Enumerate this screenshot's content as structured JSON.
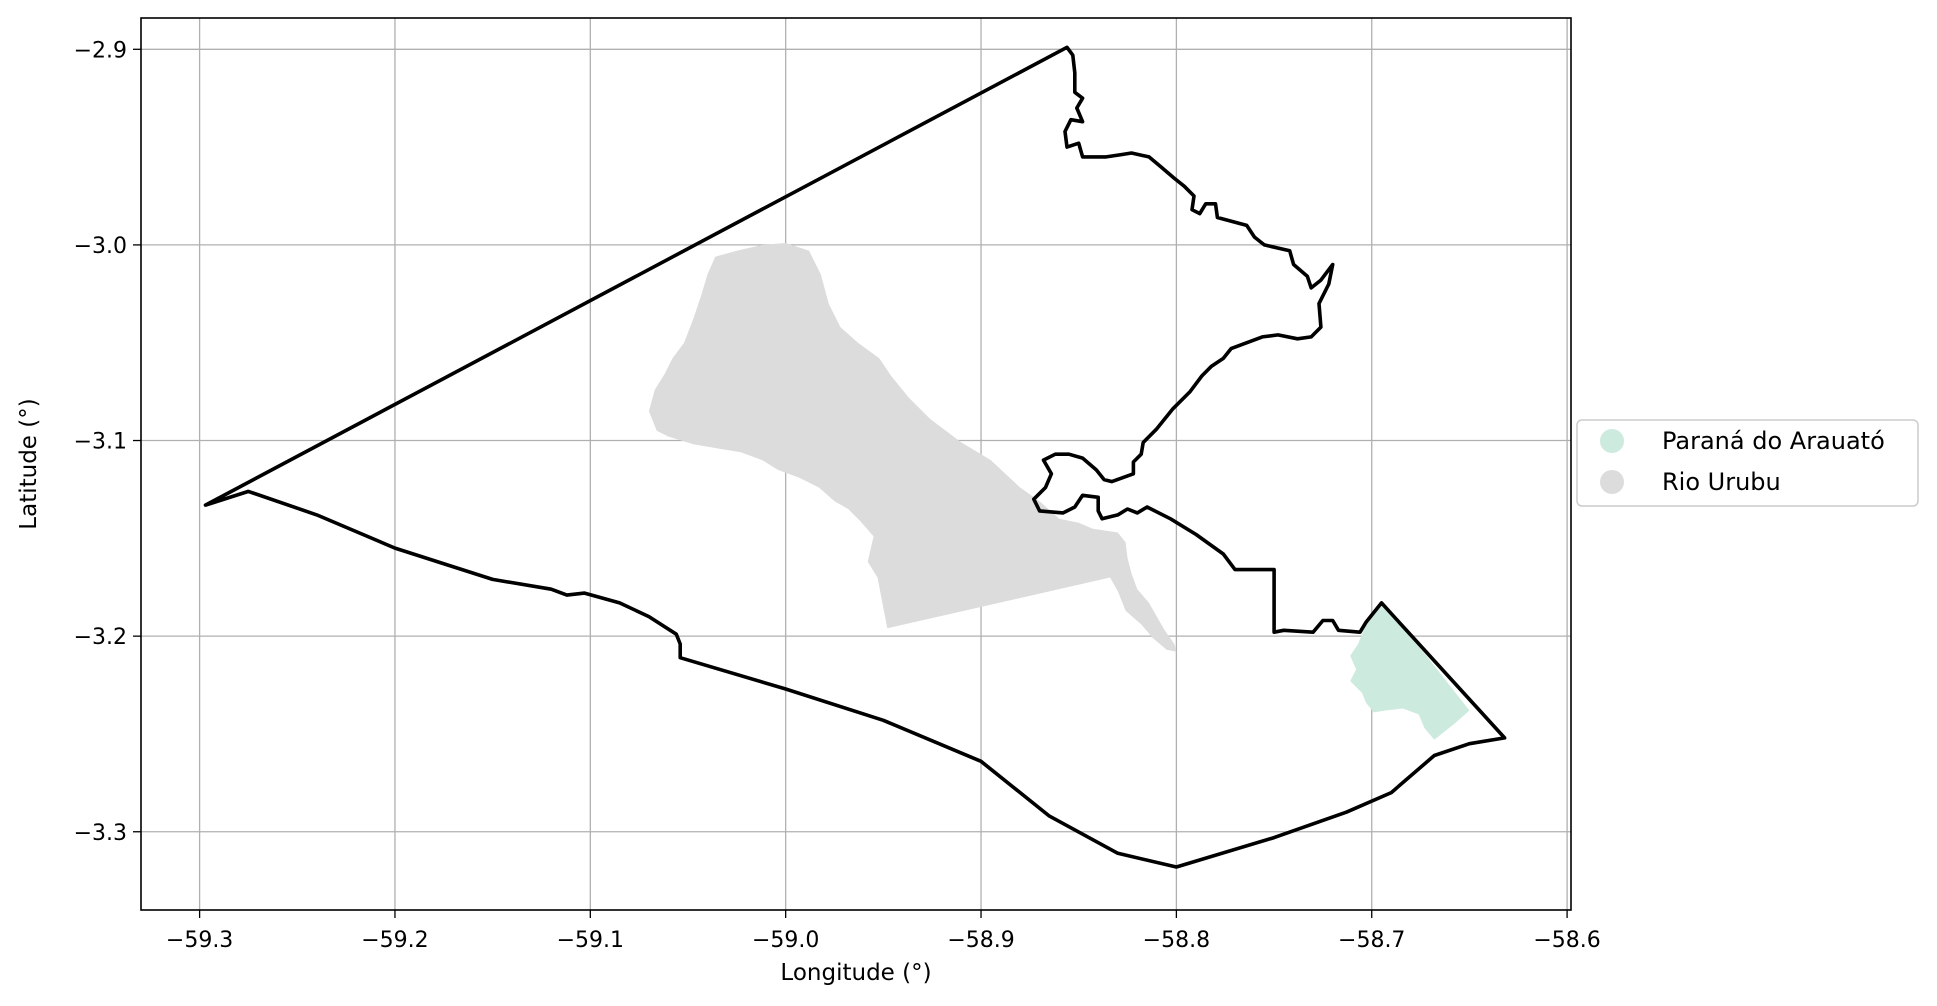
{
  "chart_data": {
    "type": "map",
    "xlabel": "Longitude (°)",
    "ylabel": "Latitude (°)",
    "xlim": [
      -59.33,
      -58.598
    ],
    "ylim": [
      -3.34,
      -2.884
    ],
    "grid": true,
    "legend_position": "right",
    "x_ticks": [
      {
        "value": -59.3,
        "label": "−59.3"
      },
      {
        "value": -59.2,
        "label": "−59.2"
      },
      {
        "value": -59.1,
        "label": "−59.1"
      },
      {
        "value": -59.0,
        "label": "−59.0"
      },
      {
        "value": -58.9,
        "label": "−58.9"
      },
      {
        "value": -58.8,
        "label": "−58.8"
      },
      {
        "value": -58.7,
        "label": "−58.7"
      },
      {
        "value": -58.6,
        "label": "−58.6"
      }
    ],
    "y_ticks": [
      {
        "value": -2.9,
        "label": "−2.9"
      },
      {
        "value": -3.0,
        "label": "−3.0"
      },
      {
        "value": -3.1,
        "label": "−3.1"
      },
      {
        "value": -3.2,
        "label": "−3.2"
      },
      {
        "value": -3.3,
        "label": "−3.3"
      }
    ],
    "boundary": {
      "color": "#000000",
      "points": [
        [
          -59.297,
          -3.133
        ],
        [
          -59.275,
          -3.126
        ],
        [
          -59.24,
          -3.138
        ],
        [
          -59.2,
          -3.155
        ],
        [
          -59.15,
          -3.171
        ],
        [
          -59.12,
          -3.176
        ],
        [
          -59.112,
          -3.179
        ],
        [
          -59.103,
          -3.178
        ],
        [
          -59.085,
          -3.183
        ],
        [
          -59.07,
          -3.19
        ],
        [
          -59.056,
          -3.199
        ],
        [
          -59.054,
          -3.204
        ],
        [
          -59.054,
          -3.211
        ],
        [
          -59.0,
          -3.227
        ],
        [
          -58.95,
          -3.243
        ],
        [
          -58.9,
          -3.264
        ],
        [
          -58.865,
          -3.292
        ],
        [
          -58.83,
          -3.311
        ],
        [
          -58.8,
          -3.318
        ],
        [
          -58.75,
          -3.303
        ],
        [
          -58.713,
          -3.29
        ],
        [
          -58.69,
          -3.28
        ],
        [
          -58.668,
          -3.261
        ],
        [
          -58.65,
          -3.255
        ],
        [
          -58.632,
          -3.252
        ],
        [
          -58.695,
          -3.183
        ],
        [
          -58.703,
          -3.193
        ],
        [
          -58.706,
          -3.198
        ],
        [
          -58.717,
          -3.197
        ],
        [
          -58.72,
          -3.192
        ],
        [
          -58.725,
          -3.192
        ],
        [
          -58.73,
          -3.198
        ],
        [
          -58.745,
          -3.197
        ],
        [
          -58.75,
          -3.198
        ],
        [
          -58.75,
          -3.166
        ],
        [
          -58.77,
          -3.166
        ],
        [
          -58.776,
          -3.158
        ],
        [
          -58.79,
          -3.148
        ],
        [
          -58.803,
          -3.14
        ],
        [
          -58.815,
          -3.134
        ],
        [
          -58.82,
          -3.137
        ],
        [
          -58.825,
          -3.135
        ],
        [
          -58.83,
          -3.138
        ],
        [
          -58.838,
          -3.14
        ],
        [
          -58.84,
          -3.136
        ],
        [
          -58.84,
          -3.129
        ],
        [
          -58.848,
          -3.128
        ],
        [
          -58.852,
          -3.134
        ],
        [
          -58.858,
          -3.137
        ],
        [
          -58.87,
          -3.136
        ],
        [
          -58.873,
          -3.13
        ],
        [
          -58.867,
          -3.124
        ],
        [
          -58.864,
          -3.117
        ],
        [
          -58.868,
          -3.11
        ],
        [
          -58.862,
          -3.107
        ],
        [
          -58.855,
          -3.107
        ],
        [
          -58.848,
          -3.109
        ],
        [
          -58.841,
          -3.115
        ],
        [
          -58.837,
          -3.12
        ],
        [
          -58.833,
          -3.121
        ],
        [
          -58.822,
          -3.117
        ],
        [
          -58.822,
          -3.111
        ],
        [
          -58.818,
          -3.107
        ],
        [
          -58.817,
          -3.101
        ],
        [
          -58.81,
          -3.094
        ],
        [
          -58.802,
          -3.084
        ],
        [
          -58.793,
          -3.075
        ],
        [
          -58.787,
          -3.067
        ],
        [
          -58.784,
          -3.064
        ],
        [
          -58.782,
          -3.062
        ],
        [
          -58.776,
          -3.058
        ],
        [
          -58.772,
          -3.053
        ],
        [
          -58.756,
          -3.047
        ],
        [
          -58.748,
          -3.046
        ],
        [
          -58.738,
          -3.048
        ],
        [
          -58.731,
          -3.047
        ],
        [
          -58.726,
          -3.042
        ],
        [
          -58.727,
          -3.03
        ],
        [
          -58.722,
          -3.02
        ],
        [
          -58.72,
          -3.01
        ],
        [
          -58.726,
          -3.018
        ],
        [
          -58.731,
          -3.022
        ],
        [
          -58.733,
          -3.016
        ],
        [
          -58.74,
          -3.01
        ],
        [
          -58.742,
          -3.003
        ],
        [
          -58.755,
          -3.0
        ],
        [
          -58.76,
          -2.996
        ],
        [
          -58.764,
          -2.99
        ],
        [
          -58.779,
          -2.986
        ],
        [
          -58.78,
          -2.979
        ],
        [
          -58.785,
          -2.979
        ],
        [
          -58.788,
          -2.984
        ],
        [
          -58.792,
          -2.982
        ],
        [
          -58.791,
          -2.975
        ],
        [
          -58.796,
          -2.97
        ],
        [
          -58.801,
          -2.966
        ],
        [
          -58.808,
          -2.96
        ],
        [
          -58.814,
          -2.955
        ],
        [
          -58.823,
          -2.953
        ],
        [
          -58.829,
          -2.954
        ],
        [
          -58.836,
          -2.955
        ],
        [
          -58.848,
          -2.955
        ],
        [
          -58.85,
          -2.948
        ],
        [
          -58.856,
          -2.95
        ],
        [
          -58.857,
          -2.942
        ],
        [
          -58.854,
          -2.936
        ],
        [
          -58.848,
          -2.937
        ],
        [
          -58.851,
          -2.93
        ],
        [
          -58.848,
          -2.925
        ],
        [
          -58.852,
          -2.922
        ],
        [
          -58.852,
          -2.912
        ],
        [
          -58.853,
          -2.903
        ],
        [
          -58.856,
          -2.899
        ]
      ]
    },
    "regions": [
      {
        "name": "Paraná do Arauató",
        "color": "#cdeade",
        "points": [
          [
            -58.695,
            -3.183
          ],
          [
            -58.703,
            -3.194
          ],
          [
            -58.707,
            -3.204
          ],
          [
            -58.711,
            -3.21
          ],
          [
            -58.708,
            -3.217
          ],
          [
            -58.711,
            -3.223
          ],
          [
            -58.705,
            -3.229
          ],
          [
            -58.703,
            -3.234
          ],
          [
            -58.699,
            -3.239
          ],
          [
            -58.693,
            -3.238
          ],
          [
            -58.684,
            -3.237
          ],
          [
            -58.676,
            -3.24
          ],
          [
            -58.673,
            -3.247
          ],
          [
            -58.668,
            -3.253
          ],
          [
            -58.658,
            -3.245
          ],
          [
            -58.65,
            -3.238
          ],
          [
            -58.672,
            -3.21
          ]
        ]
      },
      {
        "name": "Rio Urubu",
        "color": "#dcdcdc",
        "points": [
          [
            -59.0,
            -2.999
          ],
          [
            -58.988,
            -3.003
          ],
          [
            -58.982,
            -3.015
          ],
          [
            -58.978,
            -3.03
          ],
          [
            -58.972,
            -3.042
          ],
          [
            -58.963,
            -3.05
          ],
          [
            -58.952,
            -3.058
          ],
          [
            -58.946,
            -3.067
          ],
          [
            -58.937,
            -3.078
          ],
          [
            -58.926,
            -3.089
          ],
          [
            -58.91,
            -3.101
          ],
          [
            -58.895,
            -3.11
          ],
          [
            -58.88,
            -3.124
          ],
          [
            -58.87,
            -3.131
          ],
          [
            -58.86,
            -3.14
          ],
          [
            -58.85,
            -3.142
          ],
          [
            -58.843,
            -3.145
          ],
          [
            -58.83,
            -3.147
          ],
          [
            -58.826,
            -3.152
          ],
          [
            -58.825,
            -3.16
          ],
          [
            -58.823,
            -3.168
          ],
          [
            -58.82,
            -3.176
          ],
          [
            -58.814,
            -3.183
          ],
          [
            -58.81,
            -3.19
          ],
          [
            -58.806,
            -3.197
          ],
          [
            -58.801,
            -3.204
          ],
          [
            -58.8,
            -3.208
          ],
          [
            -58.805,
            -3.207
          ],
          [
            -58.812,
            -3.201
          ],
          [
            -58.818,
            -3.194
          ],
          [
            -58.826,
            -3.187
          ],
          [
            -58.83,
            -3.177
          ],
          [
            -58.834,
            -3.17
          ],
          [
            -58.948,
            -3.196
          ],
          [
            -58.953,
            -3.17
          ],
          [
            -58.958,
            -3.162
          ],
          [
            -58.955,
            -3.149
          ],
          [
            -58.962,
            -3.141
          ],
          [
            -58.968,
            -3.135
          ],
          [
            -58.975,
            -3.131
          ],
          [
            -58.983,
            -3.124
          ],
          [
            -58.993,
            -3.119
          ],
          [
            -59.004,
            -3.115
          ],
          [
            -59.012,
            -3.11
          ],
          [
            -59.023,
            -3.106
          ],
          [
            -59.035,
            -3.104
          ],
          [
            -59.047,
            -3.102
          ],
          [
            -59.06,
            -3.098
          ],
          [
            -59.066,
            -3.095
          ],
          [
            -59.07,
            -3.085
          ],
          [
            -59.067,
            -3.074
          ],
          [
            -59.062,
            -3.066
          ],
          [
            -59.058,
            -3.058
          ],
          [
            -59.052,
            -3.05
          ],
          [
            -59.047,
            -3.037
          ],
          [
            -59.043,
            -3.025
          ],
          [
            -59.04,
            -3.015
          ],
          [
            -59.036,
            -3.006
          ],
          [
            -59.025,
            -3.003
          ],
          [
            -59.012,
            -3.0
          ]
        ]
      }
    ]
  },
  "legend": {
    "items": [
      {
        "label": "Paraná do Arauató",
        "color": "#cdeade"
      },
      {
        "label": "Rio Urubu",
        "color": "#dcdcdc"
      }
    ]
  }
}
